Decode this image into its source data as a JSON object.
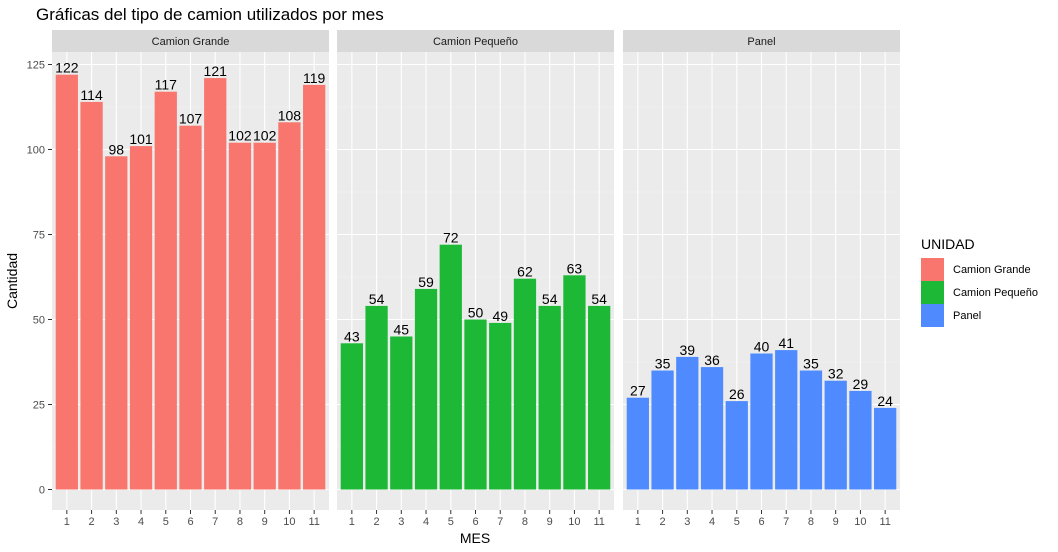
{
  "chart_data": {
    "type": "bar",
    "title": "Gráficas del tipo de camion utilizados por mes",
    "xlabel": "MES",
    "ylabel": "Cantidad",
    "ylim": [
      0,
      125
    ],
    "yticks": [
      0,
      25,
      50,
      75,
      100,
      125
    ],
    "categories": [
      "1",
      "2",
      "3",
      "4",
      "5",
      "6",
      "7",
      "8",
      "9",
      "10",
      "11"
    ],
    "facets": true,
    "grid": true,
    "legend": {
      "title": "UNIDAD",
      "position": "right"
    },
    "series": [
      {
        "name": "Camion Grande",
        "color": "#F8766D",
        "values": [
          122,
          114,
          98,
          101,
          117,
          107,
          121,
          102,
          102,
          108,
          119
        ]
      },
      {
        "name": "Camion Pequeño",
        "color": "#1DB835",
        "values": [
          43,
          54,
          45,
          59,
          72,
          50,
          49,
          62,
          54,
          63,
          54
        ]
      },
      {
        "name": "Panel",
        "color": "#4F8BFF",
        "values": [
          27,
          35,
          39,
          36,
          26,
          40,
          41,
          35,
          32,
          29,
          24
        ]
      }
    ]
  }
}
